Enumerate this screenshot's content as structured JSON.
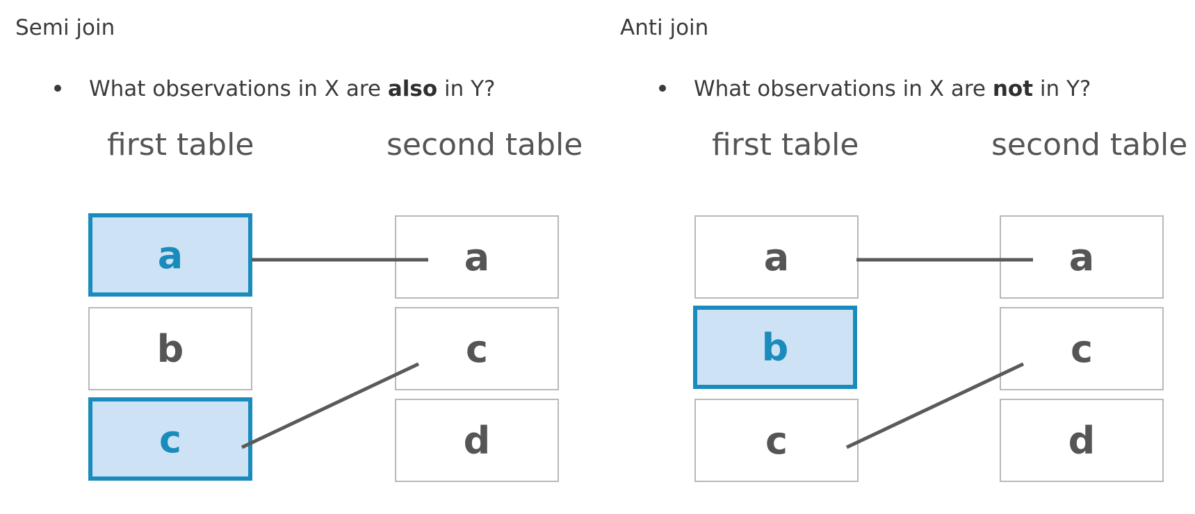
{
  "semi": {
    "heading": "Semi join",
    "bullet": {
      "pre": "What observations in X are ",
      "bold": "also",
      "post": " in Y?"
    },
    "first_title": "first table",
    "second_title": "second table",
    "first_cells": [
      {
        "label": "a",
        "highlighted": true
      },
      {
        "label": "b",
        "highlighted": false
      },
      {
        "label": "c",
        "highlighted": true
      }
    ],
    "second_cells": [
      {
        "label": "a"
      },
      {
        "label": "c"
      },
      {
        "label": "d"
      }
    ],
    "links": [
      {
        "from": "a",
        "to": "a"
      },
      {
        "from": "c",
        "to": "c"
      }
    ]
  },
  "anti": {
    "heading": "Anti join",
    "bullet": {
      "pre": "What observations in X are ",
      "bold": "not",
      "post": " in Y?"
    },
    "first_title": "first table",
    "second_title": "second table",
    "first_cells": [
      {
        "label": "a",
        "highlighted": false
      },
      {
        "label": "b",
        "highlighted": true
      },
      {
        "label": "c",
        "highlighted": false
      }
    ],
    "second_cells": [
      {
        "label": "a"
      },
      {
        "label": "c"
      },
      {
        "label": "d"
      }
    ],
    "links": [
      {
        "from": "a",
        "to": "a"
      },
      {
        "from": "c",
        "to": "c"
      }
    ]
  },
  "colors": {
    "highlight_fill": "#cde3f5",
    "highlight_border": "#1a8bbd",
    "text": "#555555",
    "link": "#5a5a5a"
  }
}
